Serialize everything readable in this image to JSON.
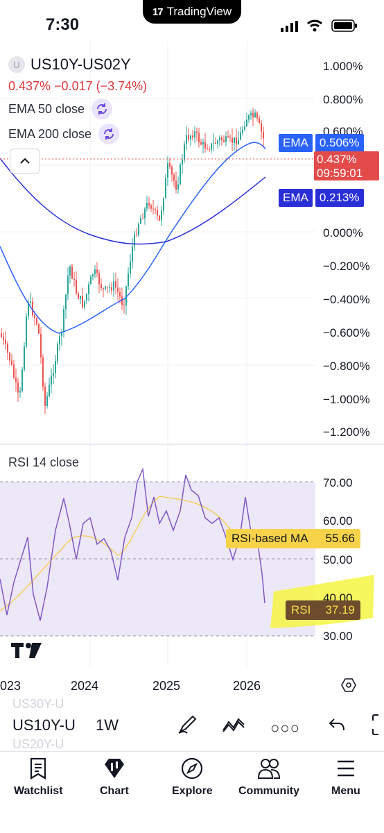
{
  "status_bar": {
    "time": "7:30",
    "app_pill": "TradingView"
  },
  "symbol": {
    "icon_letter": "U",
    "name": "US10Y-US02Y",
    "price_line": "0.437%  −0.017 (−3.74%)"
  },
  "indicators": [
    {
      "label": "EMA 50 close",
      "icon": "refresh-icon"
    },
    {
      "label": "EMA 200 close",
      "icon": "refresh-icon"
    }
  ],
  "price_axis": {
    "labels": [
      "1.000%",
      "0.800%",
      "0.600%",
      "0.000%",
      "−0.200%",
      "−0.400%",
      "−0.600%",
      "−0.800%",
      "−1.000%",
      "−1.200%"
    ],
    "ema50_tag": {
      "name": "EMA",
      "value": "0.506%"
    },
    "last_price_tag": {
      "value": "0.437%",
      "countdown": "09:59:01"
    },
    "ema200_tag": {
      "name": "EMA",
      "value": "0.213%"
    }
  },
  "rsi": {
    "label": "RSI 14 close",
    "axis_labels": [
      "70.00",
      "60.00",
      "50.00",
      "40.00",
      "30.00"
    ],
    "ma_tag": {
      "name": "RSI-based MA",
      "value": "55.66"
    },
    "rsi_tag": {
      "name": "RSI",
      "value": "37.19"
    }
  },
  "time_axis": [
    "023",
    "2024",
    "2025",
    "2026"
  ],
  "symbol_bar": {
    "ghost_top": "US30Y-U",
    "symbol": "US10Y-U",
    "ghost_bottom": "US20Y-U",
    "interval": "1W"
  },
  "tabs": [
    {
      "label": "Watchlist",
      "icon": "watchlist-icon"
    },
    {
      "label": "Chart",
      "icon": "chart-icon"
    },
    {
      "label": "Explore",
      "icon": "compass-icon"
    },
    {
      "label": "Community",
      "icon": "community-icon"
    },
    {
      "label": "Menu",
      "icon": "menu-icon"
    }
  ],
  "colors": {
    "ema50": "#2962ff",
    "ema200": "#2a2ed6",
    "up": "#26a69a",
    "down": "#ef5350",
    "rsi": "#7e57c2",
    "rsi_ma": "#f7c948",
    "highlight": "#f5f542"
  }
}
